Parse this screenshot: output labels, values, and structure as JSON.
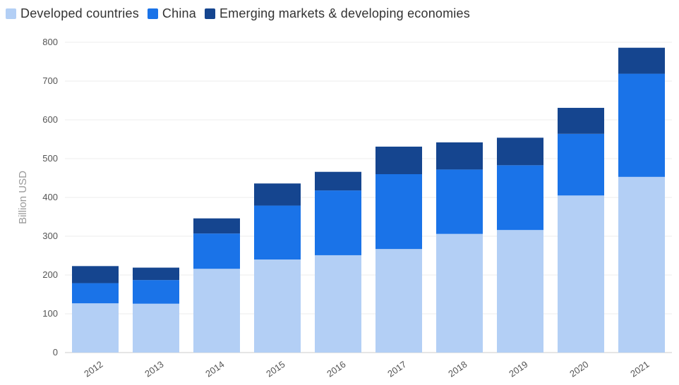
{
  "chart_data": {
    "type": "bar",
    "stacked": true,
    "title": "",
    "xlabel": "",
    "ylabel": "Billion USD",
    "ylim": [
      0,
      800
    ],
    "yticks": [
      0,
      100,
      200,
      300,
      400,
      500,
      600,
      700,
      800
    ],
    "categories": [
      "2012",
      "2013",
      "2014",
      "2015",
      "2016",
      "2017",
      "2018",
      "2019",
      "2020",
      "2021"
    ],
    "series": [
      {
        "name": "Developed countries",
        "color": "#b3cff5",
        "values": [
          127,
          126,
          216,
          240,
          251,
          267,
          306,
          316,
          405,
          453
        ]
      },
      {
        "name": "China",
        "color": "#1a73e8",
        "values": [
          52,
          61,
          91,
          139,
          167,
          193,
          166,
          167,
          159,
          266
        ]
      },
      {
        "name": "Emerging markets & developing economies",
        "color": "#15458f",
        "values": [
          44,
          32,
          39,
          57,
          48,
          71,
          70,
          71,
          67,
          67
        ]
      }
    ],
    "grid": true,
    "legend_position": "top-left"
  }
}
